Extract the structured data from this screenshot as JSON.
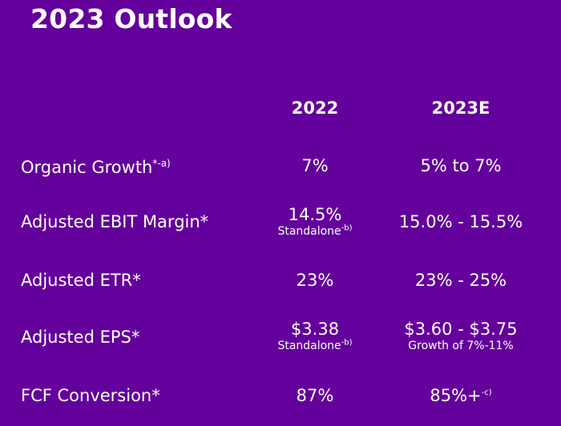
{
  "title": "2023 Outlook",
  "columns": [
    "2022",
    "2023E"
  ],
  "rows": [
    {
      "label": "Organic Growth",
      "label_marker": "*-a)",
      "y2022": "7%",
      "y2022_note": "",
      "y2022_note_marker": "",
      "y2023": "5% to 7%",
      "y2023_note": "",
      "y2023_marker": ""
    },
    {
      "label": "Adjusted EBIT Margin*",
      "label_marker": "",
      "y2022": "14.5%",
      "y2022_note": "Standalone",
      "y2022_note_marker": "-b)",
      "y2023": "15.0% - 15.5%",
      "y2023_note": "",
      "y2023_marker": ""
    },
    {
      "label": "Adjusted ETR*",
      "label_marker": "",
      "y2022": "23%",
      "y2022_note": "",
      "y2022_note_marker": "",
      "y2023": "23% - 25%",
      "y2023_note": "",
      "y2023_marker": ""
    },
    {
      "label": "Adjusted EPS*",
      "label_marker": "",
      "y2022": "$3.38",
      "y2022_note": "Standalone",
      "y2022_note_marker": "-b)",
      "y2023": "$3.60 - $3.75",
      "y2023_note": "Growth of 7%-11%",
      "y2023_marker": ""
    },
    {
      "label": "FCF Conversion*",
      "label_marker": "",
      "y2022": "87%",
      "y2022_note": "",
      "y2022_note_marker": "",
      "y2023": "85%+",
      "y2023_note": "",
      "y2023_marker": "-c)"
    }
  ],
  "colors": {
    "background": "#64009b",
    "text": "#ffffff"
  }
}
